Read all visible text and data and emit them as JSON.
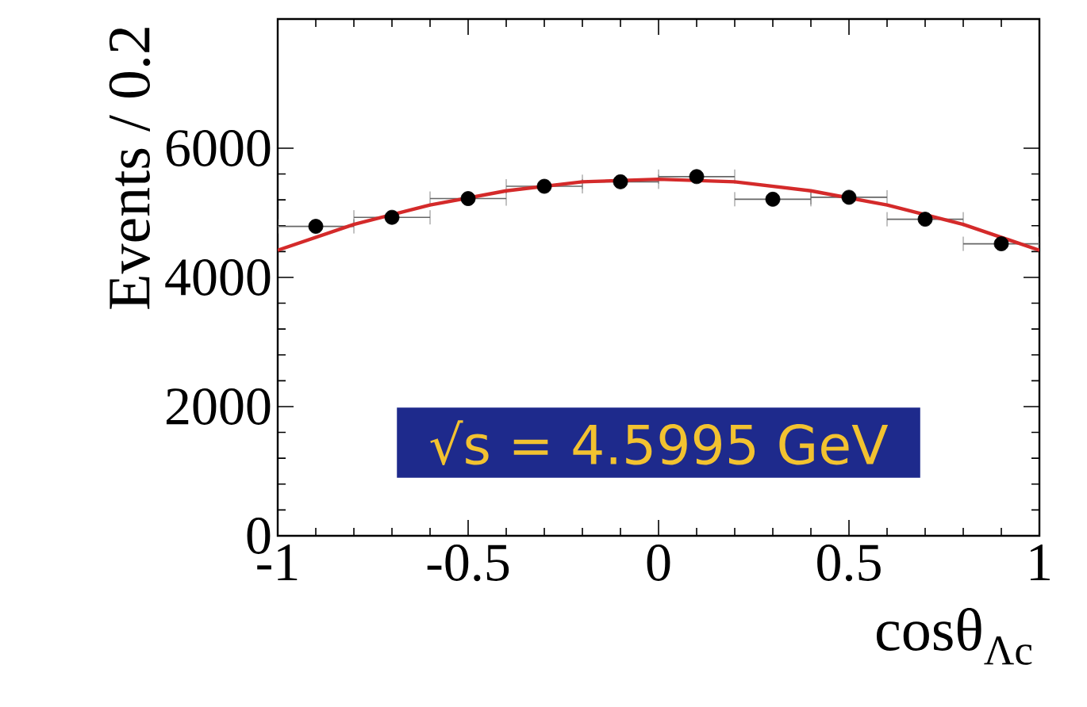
{
  "chart_data": {
    "type": "scatter",
    "xlabel": "cosθ$_{Λc}$",
    "ylabel": "Events / 0.2",
    "annotations": [
      "√s = 4.5995 GeV"
    ],
    "x": [
      -0.9,
      -0.7,
      -0.5,
      -0.3,
      -0.1,
      0.1,
      0.3,
      0.5,
      0.7,
      0.9
    ],
    "series": [
      {
        "type": "scatter",
        "color": "#000000",
        "marker": "circle",
        "values": [
          4790,
          4930,
          5220,
          5410,
          5480,
          5560,
          5210,
          5240,
          4900,
          4520
        ],
        "xerrors": [
          0.1,
          0.1,
          0.1,
          0.1,
          0.1,
          0.1,
          0.1,
          0.1,
          0.1,
          0.1
        ]
      },
      {
        "type": "line",
        "color": "#d42a2a",
        "marker": "none",
        "line_style": "solid",
        "x": [
          -1,
          -0.8,
          -0.6,
          -0.4,
          -0.2,
          0,
          0.2,
          0.4,
          0.6,
          0.8,
          1
        ],
        "values": [
          4420,
          4820,
          5120,
          5340,
          5480,
          5520,
          5480,
          5340,
          5120,
          4820,
          4420
        ]
      }
    ],
    "xlim": [
      -1,
      1
    ],
    "ylim": [
      0,
      8000
    ],
    "xticks": [
      -1,
      -0.5,
      0,
      0.5,
      1
    ],
    "yticks": [
      0,
      2000,
      4000,
      6000
    ],
    "grid": false,
    "legend": false
  }
}
